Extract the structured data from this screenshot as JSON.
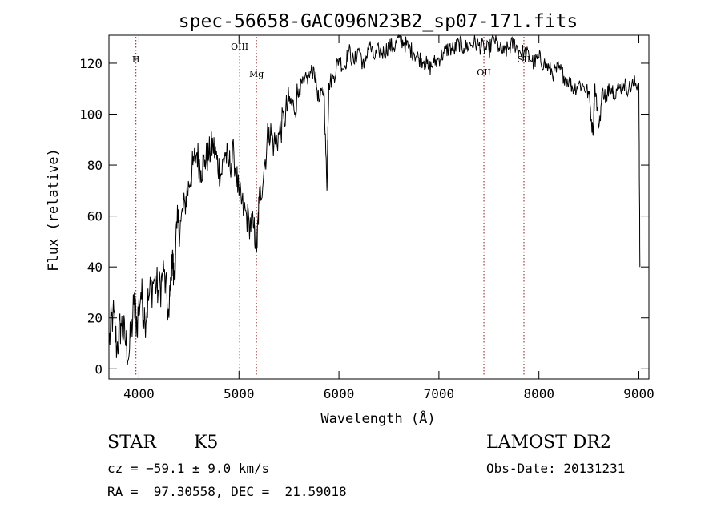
{
  "chart_data": {
    "type": "line",
    "title": "spec-56658-GAC096N23B2_sp07-171.fits",
    "xlabel": "Wavelength (Å)",
    "ylabel": "Flux (relative)",
    "xlim": [
      3700,
      9100
    ],
    "ylim": [
      -4,
      131
    ],
    "xticks": [
      4000,
      5000,
      6000,
      7000,
      8000,
      9000
    ],
    "yticks": [
      0,
      20,
      40,
      60,
      80,
      100,
      120
    ],
    "grid": false,
    "line_color": "#000000",
    "marker_color": "#8b1a1a",
    "lines": [
      {
        "label": "H",
        "x": 3970
      },
      {
        "label": "OIII",
        "x": 5007
      },
      {
        "label": "Mg",
        "x": 5175
      },
      {
        "label": "OII",
        "x": 7450
      },
      {
        "label": "SII",
        "x": 7850
      }
    ],
    "series": [
      {
        "x": [
          3700,
          3740,
          3780,
          3820,
          3860,
          3900,
          3950,
          3980,
          4020,
          4060,
          4100,
          4150,
          4200,
          4250,
          4300,
          4330,
          4350,
          4380,
          4420,
          4460,
          4500,
          4540,
          4580,
          4620,
          4660,
          4700,
          4740,
          4780,
          4820,
          4860,
          4900,
          4950,
          5000,
          5050,
          5100,
          5150,
          5180,
          5200,
          5250,
          5300,
          5350,
          5400,
          5450,
          5500,
          5550,
          5600,
          5650,
          5700,
          5750,
          5800,
          5850,
          5880,
          5890,
          5900,
          5950,
          6000,
          6050,
          6100,
          6150,
          6200,
          6250,
          6300,
          6350,
          6400,
          6450,
          6500,
          6550,
          6600,
          6650,
          6700,
          6750,
          6800,
          6850,
          6900,
          6950,
          7000,
          7050,
          7100,
          7150,
          7200,
          7250,
          7300,
          7350,
          7400,
          7450,
          7500,
          7550,
          7600,
          7650,
          7700,
          7750,
          7800,
          7850,
          7900,
          7950,
          8000,
          8050,
          8100,
          8150,
          8200,
          8250,
          8300,
          8350,
          8400,
          8450,
          8500,
          8540,
          8560,
          8600,
          8640,
          8680,
          8700,
          8750,
          8800,
          8850,
          8900,
          8950,
          9000,
          9010
        ],
        "y": [
          10,
          22,
          8,
          18,
          12,
          5,
          25,
          18,
          30,
          20,
          28,
          35,
          30,
          38,
          20,
          45,
          35,
          55,
          58,
          65,
          72,
          80,
          85,
          78,
          82,
          84,
          88,
          82,
          76,
          85,
          80,
          84,
          68,
          62,
          58,
          55,
          48,
          65,
          78,
          95,
          88,
          92,
          98,
          105,
          102,
          110,
          112,
          115,
          118,
          105,
          110,
          70,
          95,
          112,
          115,
          122,
          118,
          125,
          120,
          126,
          118,
          128,
          122,
          125,
          124,
          127,
          126,
          130,
          128,
          126,
          124,
          122,
          121,
          118,
          120,
          122,
          124,
          126,
          125,
          128,
          126,
          127,
          128,
          127,
          126,
          125,
          130,
          126,
          124,
          126,
          128,
          125,
          124,
          123,
          120,
          122,
          120,
          118,
          116,
          118,
          115,
          113,
          110,
          112,
          111,
          108,
          92,
          112,
          95,
          110,
          105,
          112,
          109,
          110,
          112,
          110,
          112,
          112,
          40
        ]
      }
    ]
  },
  "info": {
    "object_class": "STAR",
    "subclass": "K5",
    "redshift": "cz = −59.1 ± 9.0 km/s",
    "coords": "RA =  97.30558, DEC =  21.59018",
    "survey": "LAMOST DR2",
    "obs_date": "Obs-Date: 20131231"
  }
}
